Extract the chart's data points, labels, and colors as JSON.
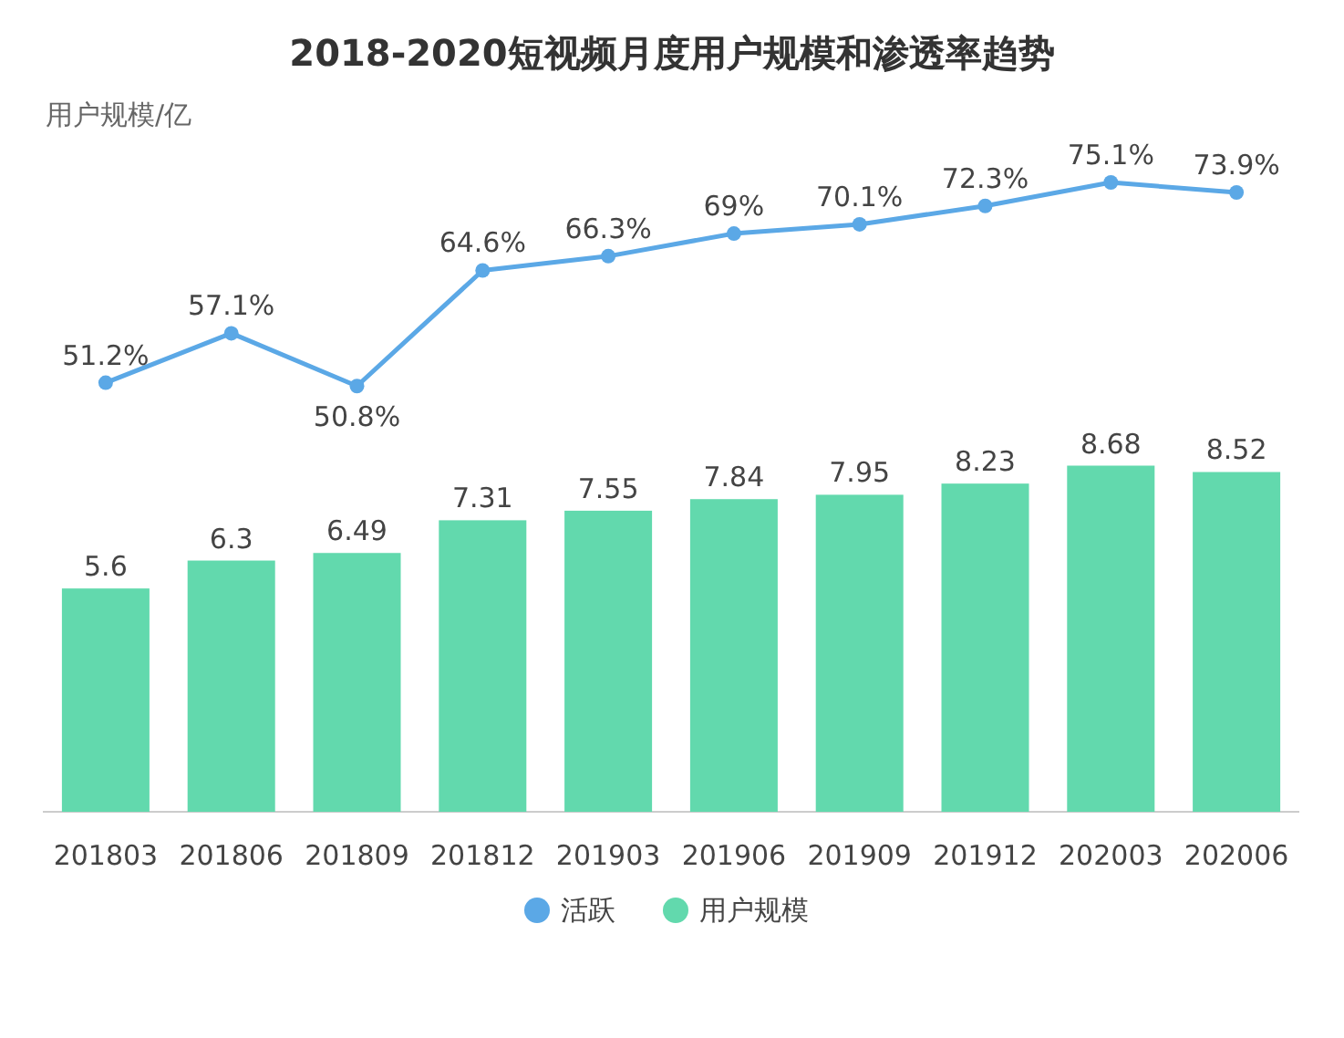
{
  "chart_data": [
    {
      "type": "line",
      "title": "2018-2020短视频月度用户规模和渗透率趋势",
      "annotations": [
        "用户规模/亿"
      ],
      "categories": [
        null,
        null,
        null,
        null,
        null,
        null,
        null,
        null,
        null,
        null
      ],
      "series": [
        {
          "name": "活跃",
          "color": "#5ba8e6",
          "values": [
            51.2,
            57.1,
            50.8,
            64.6,
            66.3,
            69,
            70.1,
            72.3,
            75.1,
            73.9
          ],
          "value_labels": [
            "51.2%",
            "57.1%",
            "50.8%",
            "64.6%",
            "66.3%",
            "69%",
            "70.1%",
            "72.3%",
            "75.1%",
            "73.9%"
          ]
        }
      ],
      "marker": "circle",
      "line_style": "solid",
      "legend": "bottom",
      "tick_labels": false
    },
    {
      "type": "bar",
      "categories": [
        "201803",
        "201806",
        "201809",
        "201812",
        "201903",
        "201906",
        "201909",
        "201912",
        "202003",
        "202006"
      ],
      "series": [
        {
          "name": "用户规模",
          "color": "#62d9ad",
          "values": [
            5.6,
            6.3,
            6.49,
            7.31,
            7.55,
            7.84,
            7.95,
            8.23,
            8.68,
            8.52
          ]
        }
      ],
      "data_labels": true,
      "legend": "bottom",
      "tick_labels": "x"
    }
  ]
}
